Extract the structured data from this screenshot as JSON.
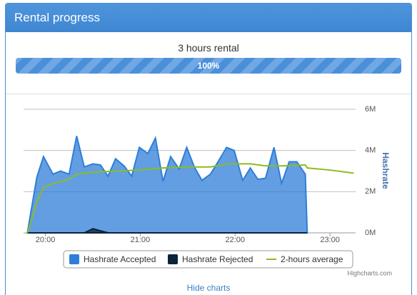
{
  "header": {
    "title": "Rental progress"
  },
  "rental": {
    "title": "3 hours rental",
    "progress_label": "100%"
  },
  "chart_data": {
    "type": "area",
    "y_axis_title": "Hashrate",
    "xlim": [
      19.77,
      23.27
    ],
    "xticks": [
      {
        "value": 20,
        "label": "20:00"
      },
      {
        "value": 21,
        "label": "21:00"
      },
      {
        "value": 22,
        "label": "22:00"
      },
      {
        "value": 23,
        "label": "23:00"
      }
    ],
    "ylim": [
      0,
      6
    ],
    "yticks": [
      {
        "value": 0,
        "label": "0M"
      },
      {
        "value": 2,
        "label": "2M"
      },
      {
        "value": 4,
        "label": "4M"
      },
      {
        "value": 6,
        "label": "6M"
      }
    ],
    "grid": true,
    "x": [
      19.81,
      19.91,
      19.98,
      20.08,
      20.16,
      20.25,
      20.33,
      20.41,
      20.5,
      20.58,
      20.66,
      20.74,
      20.83,
      20.91,
      20.99,
      21.08,
      21.16,
      21.24,
      21.32,
      21.41,
      21.49,
      21.57,
      21.65,
      21.74,
      21.82,
      21.91,
      21.99,
      22.08,
      22.16,
      22.24,
      22.32,
      22.41,
      22.49,
      22.57,
      22.65,
      22.74,
      22.76
    ],
    "series": [
      {
        "name": "Hashrate Accepted",
        "color": "#2f7ed8",
        "type": "area",
        "values": [
          0,
          2.7,
          3.7,
          2.85,
          3.0,
          2.85,
          4.7,
          3.2,
          3.35,
          3.3,
          2.75,
          3.6,
          3.25,
          2.75,
          4.15,
          3.85,
          4.6,
          2.5,
          3.7,
          3.1,
          4.15,
          3.2,
          2.55,
          2.85,
          3.45,
          4.15,
          4.0,
          2.55,
          3.15,
          2.6,
          2.65,
          4.15,
          2.4,
          3.45,
          3.45,
          2.85,
          0
        ]
      },
      {
        "name": "Hashrate Rejected",
        "color": "#0d233a",
        "type": "area",
        "values": [
          0,
          0,
          0,
          0,
          0,
          0,
          0,
          0,
          0.2,
          0.1,
          0,
          0,
          0,
          0,
          0,
          0,
          0,
          0,
          0,
          0,
          0,
          0,
          0,
          0,
          0,
          0,
          0,
          0,
          0,
          0,
          0,
          0,
          0,
          0,
          0,
          0,
          0
        ]
      },
      {
        "name": "2-hours average",
        "color": "#8bbc21",
        "type": "line",
        "x": [
          19.81,
          19.91,
          19.98,
          20.08,
          20.25,
          20.33,
          20.5,
          20.74,
          21.0,
          21.24,
          21.5,
          21.74,
          21.91,
          22.16,
          22.32,
          22.49,
          22.74,
          22.76,
          23.0,
          23.25
        ],
        "values": [
          0,
          1.5,
          2.2,
          2.4,
          2.6,
          2.85,
          2.95,
          3.0,
          3.05,
          3.15,
          3.2,
          3.2,
          3.35,
          3.35,
          3.25,
          3.25,
          3.3,
          3.15,
          3.05,
          2.9
        ]
      }
    ],
    "credits": "Highcharts.com"
  },
  "footer": {
    "link": "Hide charts"
  }
}
